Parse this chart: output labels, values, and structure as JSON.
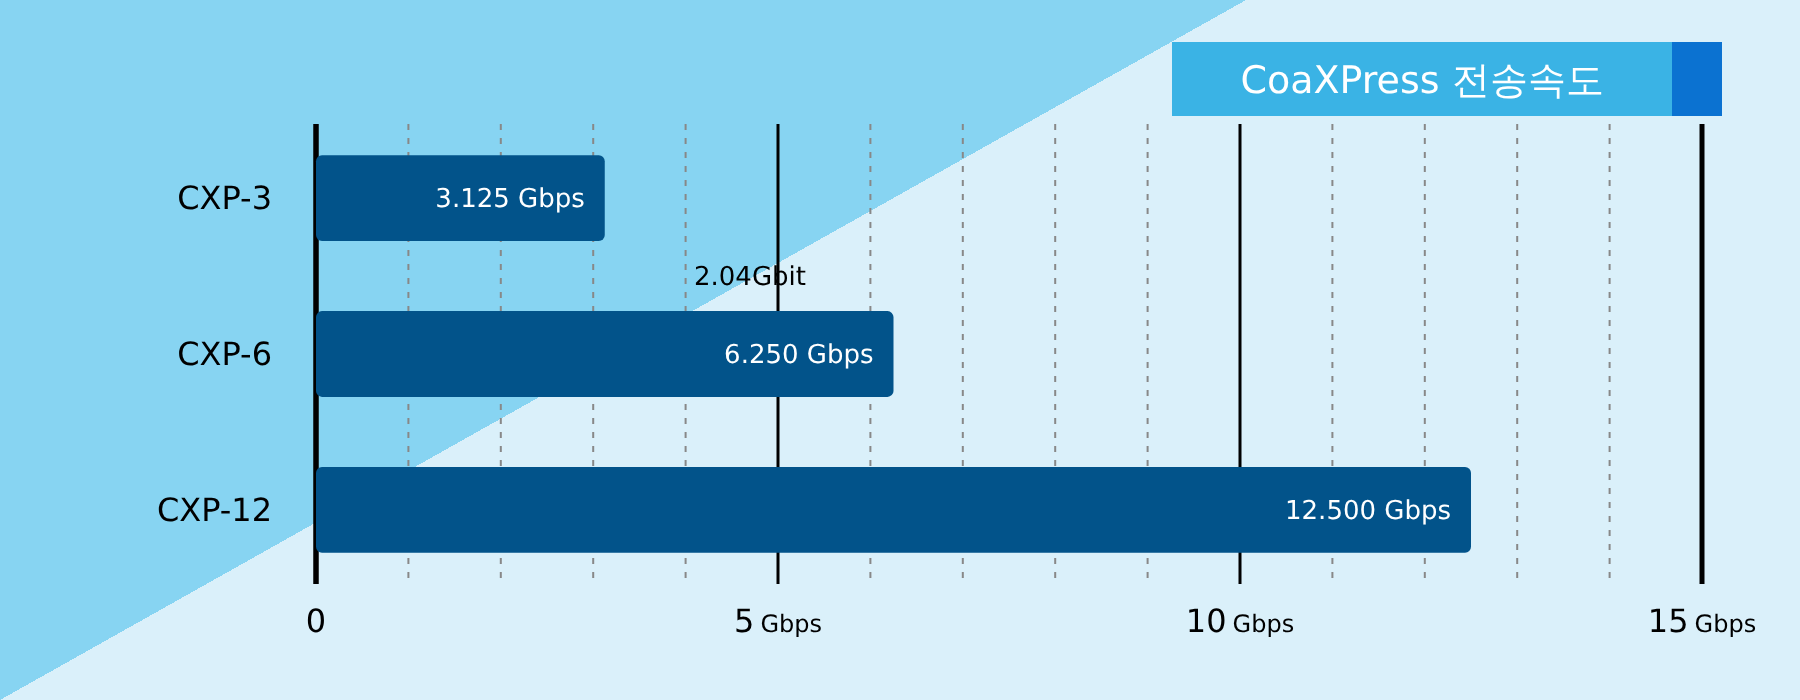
{
  "chart_data": {
    "type": "bar",
    "orientation": "horizontal",
    "title": "CoaXPress 전송속도",
    "categories": [
      "CXP-3",
      "CXP-6",
      "CXP-12"
    ],
    "values": [
      3.125,
      6.25,
      12.5
    ],
    "value_labels": [
      "3.125 Gbps",
      "6.250 Gbps",
      "12.500 Gbps"
    ],
    "color": "#02538a",
    "xlim": [
      0,
      15
    ],
    "xticks": [
      0,
      {
        "value": 1,
        "label": null
      },
      {
        "value": 2,
        "label": null
      },
      {
        "value": 3,
        "label": null
      },
      {
        "value": 4,
        "label": null
      },
      {
        "value": 5,
        "label": "5 Gbps"
      },
      {
        "value": 6,
        "label": null
      },
      {
        "value": 7,
        "label": null
      },
      {
        "value": 8,
        "label": null
      },
      {
        "value": 9,
        "label": null
      },
      {
        "value": 10,
        "label": "10 Gbps"
      },
      {
        "value": 11,
        "label": null
      },
      {
        "value": 12,
        "label": null
      },
      {
        "value": 13,
        "label": null
      },
      {
        "value": 14,
        "label": null
      },
      {
        "value": 15,
        "label": "15 Gbps"
      }
    ],
    "grid": "x",
    "annotations": [
      "2.04Gbit"
    ]
  }
}
